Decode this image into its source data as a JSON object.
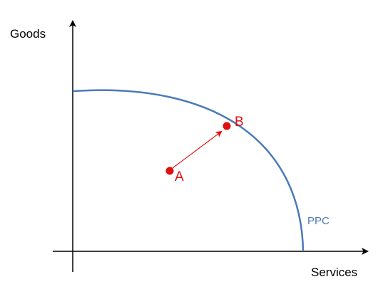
{
  "axes": {
    "y_label": "Goods",
    "x_label": "Services"
  },
  "curve": {
    "label": "PPC",
    "color": "#4a7ab8"
  },
  "points": [
    {
      "label": "A",
      "color": "#e01010"
    },
    {
      "label": "B",
      "color": "#e01010"
    }
  ],
  "arrow": {
    "from": "A",
    "to": "B",
    "color": "#e01010"
  }
}
